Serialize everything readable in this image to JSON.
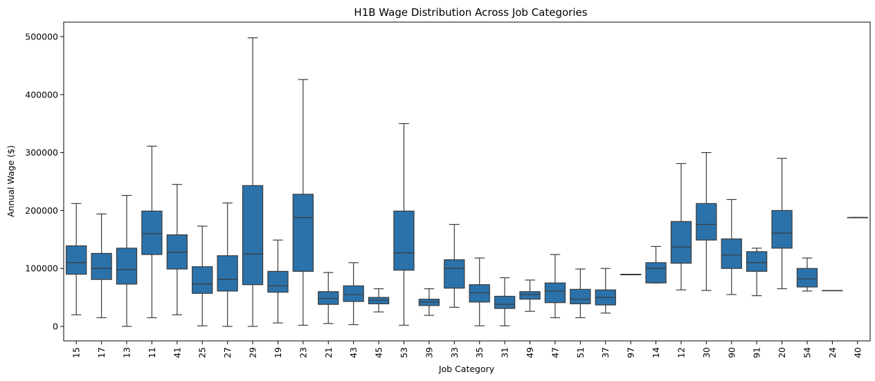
{
  "chart_data": {
    "type": "box",
    "title": "H1B Wage Distribution Across Job Categories",
    "xlabel": "Job Category",
    "ylabel": "Annual Wage ($)",
    "ylim": [
      -25000,
      525000
    ],
    "yticks": [
      0,
      100000,
      200000,
      300000,
      400000,
      500000
    ],
    "grid": false,
    "box_color": "#2b72aa",
    "line_color": "#3a3a3a",
    "categories": [
      "15",
      "17",
      "13",
      "11",
      "41",
      "25",
      "27",
      "29",
      "19",
      "23",
      "21",
      "43",
      "45",
      "53",
      "39",
      "33",
      "35",
      "31",
      "49",
      "47",
      "51",
      "37",
      "97",
      "14",
      "12",
      "30",
      "90",
      "91",
      "20",
      "54",
      "24",
      "40"
    ],
    "boxes": [
      {
        "category": "15",
        "whisker_low": 20000,
        "q1": 90000,
        "median": 110000,
        "q3": 139000,
        "whisker_high": 212000
      },
      {
        "category": "17",
        "whisker_low": 15000,
        "q1": 81000,
        "median": 100000,
        "q3": 126000,
        "whisker_high": 194000
      },
      {
        "category": "13",
        "whisker_low": 0,
        "q1": 73000,
        "median": 98000,
        "q3": 135000,
        "whisker_high": 226000
      },
      {
        "category": "11",
        "whisker_low": 15000,
        "q1": 124000,
        "median": 160000,
        "q3": 199000,
        "whisker_high": 311000
      },
      {
        "category": "41",
        "whisker_low": 20000,
        "q1": 99000,
        "median": 128000,
        "q3": 158000,
        "whisker_high": 245000
      },
      {
        "category": "25",
        "whisker_low": 1000,
        "q1": 57000,
        "median": 73000,
        "q3": 103000,
        "whisker_high": 173000
      },
      {
        "category": "27",
        "whisker_low": 0,
        "q1": 61000,
        "median": 81000,
        "q3": 122000,
        "whisker_high": 213000
      },
      {
        "category": "29",
        "whisker_low": 0,
        "q1": 72000,
        "median": 125000,
        "q3": 243000,
        "whisker_high": 498000
      },
      {
        "category": "19",
        "whisker_low": 6000,
        "q1": 59000,
        "median": 70000,
        "q3": 95000,
        "whisker_high": 149000
      },
      {
        "category": "23",
        "whisker_low": 2000,
        "q1": 95000,
        "median": 188000,
        "q3": 228000,
        "whisker_high": 426000
      },
      {
        "category": "21",
        "whisker_low": 5000,
        "q1": 38000,
        "median": 48000,
        "q3": 60000,
        "whisker_high": 93000
      },
      {
        "category": "43",
        "whisker_low": 3000,
        "q1": 43000,
        "median": 55000,
        "q3": 70000,
        "whisker_high": 110000
      },
      {
        "category": "45",
        "whisker_low": 25000,
        "q1": 39000,
        "median": 45000,
        "q3": 50000,
        "whisker_high": 65000
      },
      {
        "category": "53",
        "whisker_low": 2000,
        "q1": 97000,
        "median": 127000,
        "q3": 199000,
        "whisker_high": 350000
      },
      {
        "category": "39",
        "whisker_low": 19000,
        "q1": 36000,
        "median": 42000,
        "q3": 47000,
        "whisker_high": 65000
      },
      {
        "category": "33",
        "whisker_low": 33000,
        "q1": 66000,
        "median": 100000,
        "q3": 115000,
        "whisker_high": 176000
      },
      {
        "category": "35",
        "whisker_low": 1000,
        "q1": 42000,
        "median": 58000,
        "q3": 72000,
        "whisker_high": 118000
      },
      {
        "category": "31",
        "whisker_low": 1000,
        "q1": 31000,
        "median": 38000,
        "q3": 52000,
        "whisker_high": 84000
      },
      {
        "category": "49",
        "whisker_low": 26000,
        "q1": 47000,
        "median": 55000,
        "q3": 60000,
        "whisker_high": 80000
      },
      {
        "category": "47",
        "whisker_low": 15000,
        "q1": 41000,
        "median": 61000,
        "q3": 75000,
        "whisker_high": 124000
      },
      {
        "category": "51",
        "whisker_low": 15000,
        "q1": 39000,
        "median": 47000,
        "q3": 64000,
        "whisker_high": 99000
      },
      {
        "category": "37",
        "whisker_low": 23000,
        "q1": 37000,
        "median": 50000,
        "q3": 63000,
        "whisker_high": 100000
      },
      {
        "category": "97",
        "whisker_low": 89000,
        "q1": 89000,
        "median": 89000,
        "q3": 90000,
        "whisker_high": 90000
      },
      {
        "category": "14",
        "whisker_low": 75000,
        "q1": 75000,
        "median": 100000,
        "q3": 110000,
        "whisker_high": 138000
      },
      {
        "category": "12",
        "whisker_low": 63000,
        "q1": 109000,
        "median": 137000,
        "q3": 181000,
        "whisker_high": 281000
      },
      {
        "category": "30",
        "whisker_low": 62000,
        "q1": 149000,
        "median": 176000,
        "q3": 212000,
        "whisker_high": 300000
      },
      {
        "category": "90",
        "whisker_low": 55000,
        "q1": 100000,
        "median": 123000,
        "q3": 151000,
        "whisker_high": 219000
      },
      {
        "category": "91",
        "whisker_low": 53000,
        "q1": 95000,
        "median": 110000,
        "q3": 129000,
        "whisker_high": 135000
      },
      {
        "category": "20",
        "whisker_low": 65000,
        "q1": 135000,
        "median": 161000,
        "q3": 200000,
        "whisker_high": 290000
      },
      {
        "category": "54",
        "whisker_low": 61000,
        "q1": 68000,
        "median": 82000,
        "q3": 100000,
        "whisker_high": 118000
      },
      {
        "category": "24",
        "whisker_low": 62000,
        "q1": 62000,
        "median": 62000,
        "q3": 62000,
        "whisker_high": 62000
      },
      {
        "category": "40",
        "whisker_low": 188000,
        "q1": 188000,
        "median": 188000,
        "q3": 188000,
        "whisker_high": 188000
      }
    ]
  }
}
